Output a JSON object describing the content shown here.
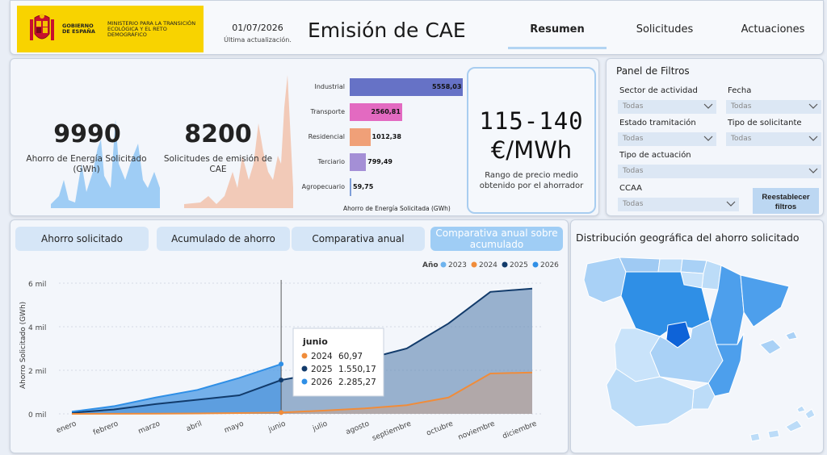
{
  "header": {
    "logo_gobierno": "GOBIERNO DE ESPAÑA",
    "logo_ministerio": "MINISTERIO PARA LA TRANSICIÓN ECOLÓGICA Y EL RETO DEMOGRÁFICO",
    "date": "01/07/2026",
    "date_label": "Última actualización.",
    "title": "Emisión de CAE",
    "tabs": [
      {
        "label": "Resumen",
        "active": true
      },
      {
        "label": "Solicitudes",
        "active": false
      },
      {
        "label": "Actuaciones",
        "active": false
      }
    ]
  },
  "kpis": {
    "ahorro_value": "9990",
    "ahorro_label": "Ahorro de Energía Solicitado (GWh)",
    "solicitudes_value": "8200",
    "solicitudes_label": "Solicitudes de emisión de CAE"
  },
  "sector_chart": {
    "axis_label": "Ahorro de Energía Solicitada (GWh)",
    "sectors": [
      {
        "name": "Industrial",
        "value": 5558.03,
        "label": "5558,03",
        "color": "#6672c6"
      },
      {
        "name": "Transporte",
        "value": 2560.81,
        "label": "2560,81",
        "color": "#e36ac1"
      },
      {
        "name": "Residencial",
        "value": 1012.38,
        "label": "1012,38",
        "color": "#f0a078"
      },
      {
        "name": "Terciario",
        "value": 799.49,
        "label": "799,49",
        "color": "#a48fd6"
      },
      {
        "name": "Agropecuario",
        "value": 59.75,
        "label": "59,75",
        "color": "#7e9ed9"
      }
    ]
  },
  "price": {
    "range": "115-140",
    "unit": "€/MWh",
    "description": "Rango de precio medio obtenido por el ahorrador"
  },
  "filters": {
    "title": "Panel de Filtros",
    "sector": {
      "label": "Sector de actividad",
      "value": "Todas"
    },
    "fecha": {
      "label": "Fecha",
      "value": "Todas"
    },
    "estado": {
      "label": "Estado tramitación",
      "value": "Todas"
    },
    "tipo_solicitante": {
      "label": "Tipo de solicitante",
      "value": "Todas"
    },
    "tipo_actuacion": {
      "label": "Tipo de actuación",
      "value": "Todas"
    },
    "ccaa": {
      "label": "CCAA",
      "value": "Todas"
    },
    "reset_label": "Reestablecer filtros"
  },
  "views": [
    {
      "label": "Ahorro solicitado",
      "active": false
    },
    {
      "label": "Acumulado de ahorro",
      "active": false
    },
    {
      "label": "Comparativa anual",
      "active": false
    },
    {
      "label": "Comparativa anual sobre acumulado",
      "active": true
    }
  ],
  "chart_data": {
    "type": "area",
    "ylabel": "Ahorro Solicitado (GWh)",
    "ylim": [
      0,
      6000
    ],
    "y_ticks": [
      {
        "v": 0,
        "label": "0 mil"
      },
      {
        "v": 2000,
        "label": "2 mil"
      },
      {
        "v": 4000,
        "label": "4 mil"
      },
      {
        "v": 6000,
        "label": "6 mil"
      }
    ],
    "legend_title": "Año",
    "categories": [
      "enero",
      "febrero",
      "marzo",
      "abril",
      "mayo",
      "junio",
      "julio",
      "agosto",
      "septiembre",
      "octubre",
      "noviembre",
      "diciembre"
    ],
    "series": [
      {
        "name": "2023",
        "color": "#6db3ee",
        "values": [
          null,
          null,
          null,
          null,
          null,
          null,
          null,
          null,
          null,
          null,
          null,
          null
        ]
      },
      {
        "name": "2024",
        "color": "#f08c3a",
        "values": [
          0,
          5,
          10,
          20,
          35,
          60.97,
          150,
          250,
          400,
          750,
          1850,
          1900
        ]
      },
      {
        "name": "2025",
        "color": "#123b6b",
        "values": [
          50,
          200,
          450,
          650,
          850,
          1550.17,
          1900,
          2500,
          3000,
          4150,
          5600,
          5750
        ]
      },
      {
        "name": "2026",
        "color": "#2f8fe6",
        "values": [
          100,
          350,
          750,
          1100,
          1650,
          2285.27,
          null,
          null,
          null,
          null,
          null,
          null
        ]
      }
    ],
    "tooltip": {
      "title": "junio",
      "rows": [
        {
          "year": "2024",
          "value": "60,97",
          "color": "#f08c3a"
        },
        {
          "year": "2025",
          "value": "1.550,17",
          "color": "#123b6b"
        },
        {
          "year": "2026",
          "value": "2.285,27",
          "color": "#2f8fe6"
        }
      ]
    }
  },
  "map": {
    "title": "Distribución geográfica del ahorro solicitado"
  }
}
